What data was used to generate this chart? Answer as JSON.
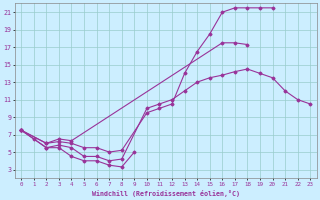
{
  "xlabel": "Windchill (Refroidissement éolien,°C)",
  "bg_color": "#cceeff",
  "line_color": "#993399",
  "xlim": [
    -0.5,
    23.5
  ],
  "ylim": [
    2,
    22
  ],
  "xticks": [
    0,
    1,
    2,
    3,
    4,
    5,
    6,
    7,
    8,
    9,
    10,
    11,
    12,
    13,
    14,
    15,
    16,
    17,
    18,
    19,
    20,
    21,
    22,
    23
  ],
  "yticks": [
    3,
    5,
    7,
    9,
    11,
    13,
    15,
    17,
    19,
    21
  ],
  "grid_color": "#99cccc",
  "s1x": [
    0,
    1,
    2,
    3,
    4,
    5,
    6,
    7,
    8,
    9
  ],
  "s1y": [
    7.5,
    6.5,
    5.5,
    5.5,
    4.5,
    4.0,
    4.0,
    3.5,
    3.3,
    5.0
  ],
  "s2x": [
    0,
    2,
    3,
    4,
    5,
    6,
    7,
    8,
    10,
    11,
    12,
    13,
    14,
    15,
    16,
    17,
    18,
    19,
    20,
    21,
    22,
    23
  ],
  "s2y": [
    7.5,
    5.5,
    5.8,
    5.5,
    4.5,
    4.5,
    4.0,
    4.2,
    10.0,
    10.5,
    11.0,
    12.0,
    13.0,
    13.5,
    13.8,
    14.2,
    14.5,
    14.0,
    13.5,
    12.0,
    11.0,
    10.5
  ],
  "s3x": [
    0,
    2,
    3,
    4,
    5,
    6,
    7,
    8,
    10,
    11,
    12,
    13,
    14,
    15,
    16,
    17,
    18,
    19,
    20
  ],
  "s3y": [
    7.5,
    6.0,
    6.2,
    6.0,
    5.5,
    5.5,
    5.0,
    5.2,
    9.5,
    10.0,
    10.5,
    14.0,
    16.5,
    18.5,
    21.0,
    21.5,
    21.5,
    21.5,
    21.5
  ],
  "s4x": [
    0,
    2,
    3,
    4,
    16,
    17,
    18
  ],
  "s4y": [
    7.5,
    6.0,
    6.5,
    6.3,
    17.5,
    17.5,
    17.3
  ]
}
